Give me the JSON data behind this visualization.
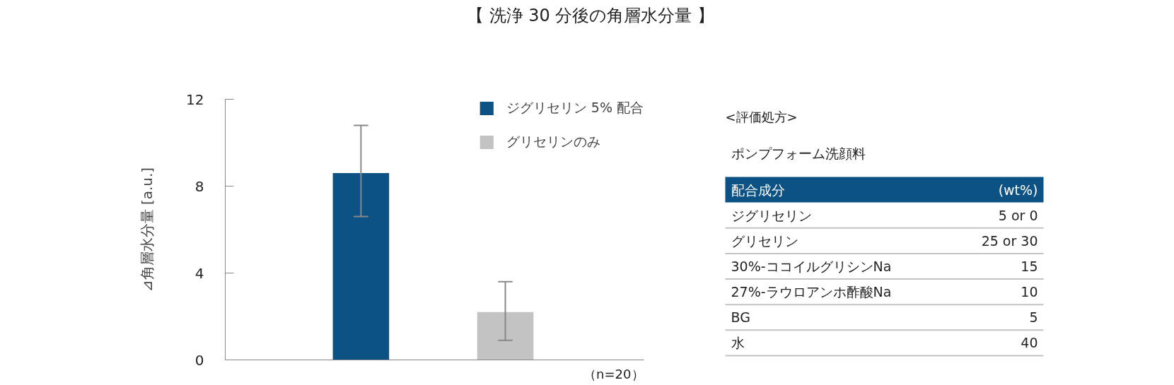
{
  "chart_data": [
    {
      "type": "bar",
      "title": "【 洗浄 30 分後の角層水分量 】",
      "ylabel": "⊿角層水分量 [a.u.]",
      "categories": [
        null,
        null
      ],
      "series": [
        {
          "name": "ジグリセリン 5% 配合",
          "color": "#0c5285",
          "values": [
            8.6,
            null
          ],
          "errors": [
            [
              6.6,
              10.8
            ],
            null
          ]
        },
        {
          "name": "グリセリンのみ",
          "color": "#c3c3c3",
          "values": [
            null,
            2.2
          ],
          "errors": [
            null,
            [
              0.9,
              3.6
            ]
          ]
        }
      ],
      "ylim": [
        0,
        12
      ],
      "yticks": [
        0,
        4,
        8,
        12
      ],
      "legend": "top right",
      "annotations": [
        "（n=20）"
      ]
    },
    {
      "type": "other",
      "title": "<評価処方>",
      "subtitle": "ポンプフォーム洗顔料",
      "color": "#0c5285",
      "annotations": [
        "配合成分",
        "(wt%)",
        "ジグリセリン",
        "5 or 0",
        "グリセリン",
        "25 or 30",
        "30%-ココイルグリシンNa",
        "15",
        "27%-ラウロアンホ酢酸Na",
        "10",
        "BG",
        "5",
        "水",
        "40"
      ]
    }
  ]
}
